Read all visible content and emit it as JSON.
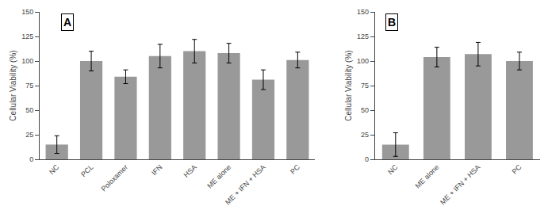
{
  "chart_data": [
    {
      "type": "bar",
      "categories": [
        "NC",
        "PCL",
        "Poloxamer",
        "IFN",
        "HSA",
        "ME alone",
        "ME + IFN + HSA",
        "PC"
      ],
      "values": [
        15,
        100,
        84,
        105,
        110,
        108,
        81,
        101
      ],
      "errors": [
        9,
        10,
        7,
        12,
        12,
        10,
        10,
        8
      ],
      "annotations": [
        "A"
      ],
      "y_label": "Cellular Viability (%)",
      "color": "#999999",
      "ylim": [
        0,
        150
      ],
      "yticks": [
        0,
        25,
        50,
        75,
        100,
        125,
        150
      ],
      "grid": false
    },
    {
      "type": "bar",
      "categories": [
        "NC",
        "ME alone",
        "ME + IFN + HSA",
        "PC"
      ],
      "values": [
        15,
        104,
        107,
        100
      ],
      "errors": [
        12,
        10,
        12,
        9
      ],
      "annotations": [
        "B"
      ],
      "y_label": "Cellular Viability (%)",
      "color": "#999999",
      "ylim": [
        0,
        150
      ],
      "yticks": [
        0,
        25,
        50,
        75,
        100,
        125,
        150
      ],
      "grid": false
    }
  ]
}
